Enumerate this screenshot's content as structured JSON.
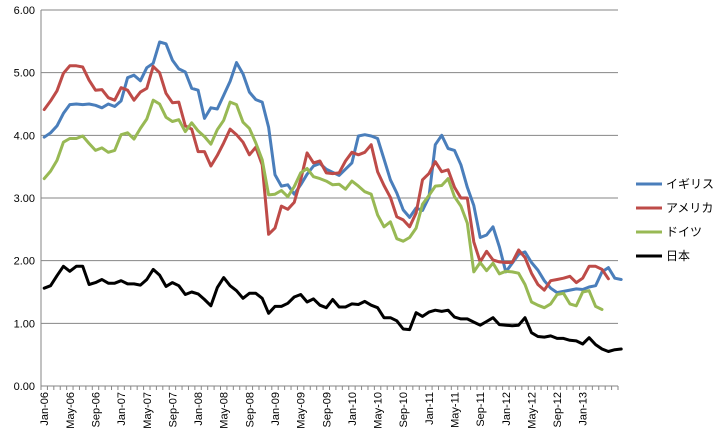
{
  "chart_data": {
    "type": "line",
    "title": "",
    "xlabel": "",
    "ylabel": "",
    "ylim": [
      0,
      6
    ],
    "yticks": [
      "0.00",
      "1.00",
      "2.00",
      "3.00",
      "4.00",
      "5.00",
      "6.00"
    ],
    "x_tick_labels": [
      "Jan-06",
      "May-06",
      "Sep-06",
      "Jan-07",
      "May-07",
      "Sep-07",
      "Jan-08",
      "May-08",
      "Sep-08",
      "Jan-09",
      "May-09",
      "Sep-09",
      "Jan-10",
      "May-10",
      "Sep-10",
      "Jan-11",
      "May-11",
      "Sep-11",
      "Jan-12",
      "May-12",
      "Sep-12",
      "Jan-13"
    ],
    "x_start": "2006-01",
    "x_end": "2013-06",
    "grid": "horizontal",
    "legend_position": "right",
    "series": [
      {
        "name": "イギリス",
        "color": "#4a7ebb",
        "values": [
          3.97,
          4.04,
          4.15,
          4.35,
          4.49,
          4.5,
          4.49,
          4.5,
          4.48,
          4.44,
          4.5,
          4.46,
          4.55,
          4.92,
          4.96,
          4.87,
          5.08,
          5.15,
          5.49,
          5.46,
          5.2,
          5.06,
          5.01,
          4.75,
          4.72,
          4.27,
          4.44,
          4.42,
          4.64,
          4.86,
          5.16,
          4.98,
          4.69,
          4.57,
          4.53,
          4.13,
          3.37,
          3.19,
          3.21,
          3.06,
          3.21,
          3.38,
          3.51,
          3.55,
          3.46,
          3.41,
          3.36,
          3.46,
          3.56,
          3.99,
          4.01,
          3.99,
          3.95,
          3.62,
          3.29,
          3.08,
          2.81,
          2.69,
          2.84,
          2.8,
          3.01,
          3.85,
          4.0,
          3.79,
          3.76,
          3.53,
          3.17,
          2.88,
          2.37,
          2.41,
          2.54,
          2.22,
          1.82,
          1.96,
          2.1,
          2.14,
          1.97,
          1.85,
          1.68,
          1.56,
          1.49,
          1.51,
          1.53,
          1.55,
          1.54,
          1.58,
          1.6,
          1.82,
          1.89,
          1.72,
          1.7
        ]
      },
      {
        "name": "アメリカ",
        "color": "#be4b48",
        "values": [
          4.41,
          4.55,
          4.71,
          4.99,
          5.11,
          5.11,
          5.09,
          4.88,
          4.72,
          4.73,
          4.6,
          4.56,
          4.76,
          4.72,
          4.56,
          4.69,
          4.75,
          5.1,
          5.0,
          4.67,
          4.52,
          4.53,
          4.15,
          4.1,
          3.74,
          3.74,
          3.51,
          3.68,
          3.88,
          4.1,
          4.01,
          3.89,
          3.69,
          3.81,
          3.53,
          2.42,
          2.52,
          2.87,
          2.82,
          2.93,
          3.29,
          3.72,
          3.56,
          3.59,
          3.4,
          3.39,
          3.4,
          3.59,
          3.73,
          3.69,
          3.73,
          3.85,
          3.42,
          3.2,
          3.01,
          2.7,
          2.65,
          2.54,
          2.76,
          3.29,
          3.39,
          3.58,
          3.42,
          3.45,
          3.17,
          3.0,
          3.0,
          2.3,
          1.98,
          2.15,
          2.01,
          1.98,
          1.97,
          1.97,
          2.17,
          2.05,
          1.8,
          1.62,
          1.53,
          1.68,
          1.7,
          1.72,
          1.75,
          1.65,
          1.72,
          1.91,
          1.91,
          1.86,
          1.71
        ]
      },
      {
        "name": "ドイツ",
        "color": "#98b954",
        "values": [
          3.31,
          3.43,
          3.6,
          3.89,
          3.95,
          3.95,
          3.99,
          3.87,
          3.76,
          3.8,
          3.73,
          3.76,
          4.01,
          4.04,
          3.94,
          4.11,
          4.26,
          4.56,
          4.5,
          4.29,
          4.22,
          4.25,
          4.06,
          4.2,
          4.07,
          3.98,
          3.86,
          4.09,
          4.24,
          4.53,
          4.49,
          4.21,
          4.11,
          3.88,
          3.61,
          3.05,
          3.06,
          3.12,
          3.02,
          3.18,
          3.4,
          3.47,
          3.34,
          3.31,
          3.27,
          3.21,
          3.22,
          3.14,
          3.27,
          3.19,
          3.1,
          3.06,
          2.73,
          2.54,
          2.62,
          2.35,
          2.31,
          2.37,
          2.52,
          2.9,
          3.04,
          3.19,
          3.2,
          3.31,
          3.02,
          2.87,
          2.6,
          1.82,
          1.97,
          1.84,
          1.96,
          1.79,
          1.83,
          1.82,
          1.8,
          1.62,
          1.34,
          1.29,
          1.25,
          1.31,
          1.46,
          1.48,
          1.31,
          1.28,
          1.5,
          1.52,
          1.27,
          1.22
        ]
      },
      {
        "name": "日本",
        "color": "#000000",
        "values": [
          1.56,
          1.6,
          1.76,
          1.91,
          1.83,
          1.91,
          1.91,
          1.62,
          1.65,
          1.7,
          1.64,
          1.64,
          1.68,
          1.63,
          1.63,
          1.61,
          1.7,
          1.86,
          1.77,
          1.59,
          1.65,
          1.6,
          1.46,
          1.5,
          1.47,
          1.38,
          1.28,
          1.57,
          1.73,
          1.6,
          1.52,
          1.4,
          1.48,
          1.48,
          1.4,
          1.16,
          1.27,
          1.27,
          1.32,
          1.42,
          1.46,
          1.34,
          1.39,
          1.29,
          1.25,
          1.38,
          1.26,
          1.26,
          1.31,
          1.3,
          1.35,
          1.29,
          1.25,
          1.09,
          1.09,
          1.04,
          0.91,
          0.9,
          1.17,
          1.11,
          1.18,
          1.21,
          1.19,
          1.21,
          1.1,
          1.07,
          1.07,
          1.02,
          0.97,
          1.03,
          1.09,
          0.98,
          0.97,
          0.96,
          0.97,
          1.09,
          0.85,
          0.79,
          0.78,
          0.8,
          0.76,
          0.76,
          0.73,
          0.72,
          0.67,
          0.77,
          0.66,
          0.59,
          0.55,
          0.58,
          0.59
        ]
      }
    ]
  }
}
